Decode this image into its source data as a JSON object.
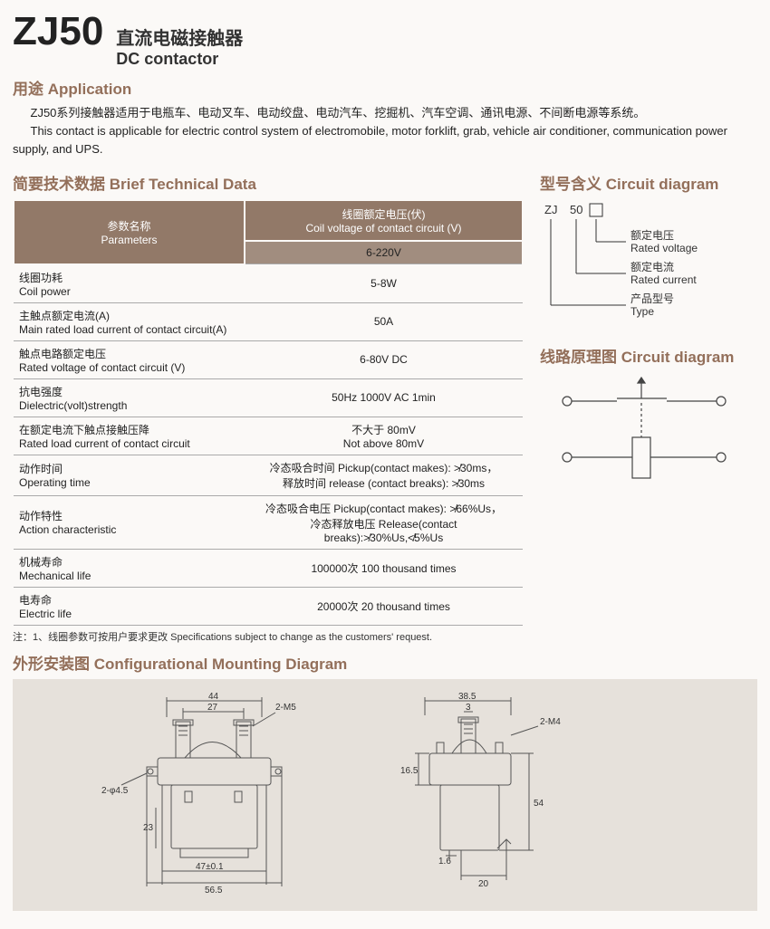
{
  "header": {
    "model": "ZJ50",
    "title_cn": "直流电磁接触器",
    "title_en": "DC contactor"
  },
  "application": {
    "heading": "用途 Application",
    "text_cn": "ZJ50系列接触器适用于电瓶车、电动叉车、电动绞盘、电动汽车、挖掘机、汽车空调、通讯电源、不间断电源等系统。",
    "text_en": "This contact is applicable for electric control system of electromobile, motor forklift, grab, vehicle air conditioner, communication power supply, and UPS."
  },
  "tech": {
    "heading": "简要技术数据  Brief Technical Data",
    "col1_cn": "参数名称",
    "col1_en": "Parameters",
    "col2_cn": "线圈额定电压(伏)",
    "col2_en": "Coil voltage of contact circuit (V)",
    "col2_range": "6-220V",
    "rows": [
      {
        "cn": "线圈功耗",
        "en": "Coil power",
        "val": "5-8W"
      },
      {
        "cn": "主触点额定电流(A)",
        "en": "Main rated load current of contact circuit(A)",
        "val": "50A"
      },
      {
        "cn": "触点电路额定电压",
        "en": "Rated voltage of contact circuit (V)",
        "val": "6-80V DC"
      },
      {
        "cn": "抗电强度",
        "en": "Dielectric(volt)strength",
        "val": "50Hz 1000V AC 1min"
      },
      {
        "cn": "在额定电流下触点接触压降",
        "en": "Rated load current of contact circuit",
        "val": "不大于 80mV\nNot above 80mV"
      },
      {
        "cn": "动作时间",
        "en": "Operating time",
        "val": "冷态吸合时间 Pickup(contact makes): ≯30ms，\n释放时间 release (contact breaks): ≯30ms"
      },
      {
        "cn": "动作特性",
        "en": "Action characteristic",
        "val": "冷态吸合电压 Pickup(contact makes): ≯66%Us，\n冷态释放电压 Release(contact breaks):≯30%Us,≮5%Us"
      },
      {
        "cn": "机械寿命",
        "en": "Mechanical life",
        "val": "100000次 100 thousand times"
      },
      {
        "cn": "电寿命",
        "en": "Electric life",
        "val": "20000次 20 thousand times"
      }
    ],
    "note": "注：1、线圈参数可按用户要求更改  Specifications subject to change as the customers' request."
  },
  "model_meaning": {
    "heading": "型号含义 Circuit diagram",
    "parts": [
      "ZJ",
      "50",
      ""
    ],
    "labels": [
      {
        "cn": "额定电压",
        "en": "Rated voltage"
      },
      {
        "cn": "额定电流",
        "en": "Rated current"
      },
      {
        "cn": "产品型号",
        "en": "Type"
      }
    ]
  },
  "circuit": {
    "heading": "线路原理图 Circuit diagram"
  },
  "mounting": {
    "heading": "外形安装图 Configurational Mounting Diagram",
    "front": {
      "dims": {
        "d44": "44",
        "d27": "27",
        "m5": "2-M5",
        "hole": "2-φ4.5",
        "d47": "47±0.1",
        "d56": "56.5",
        "d23": "23"
      }
    },
    "side": {
      "dims": {
        "d38": "38.5",
        "d3": "3",
        "m4": "2-M4",
        "d54": "54",
        "d16": "16.5",
        "d1_6": "1.6",
        "d20": "20"
      }
    },
    "colors": {
      "line": "#444",
      "fill": "#e6e1db",
      "text": "#333"
    }
  },
  "style": {
    "accent": "#936f5a",
    "table_header_bg": "#927968",
    "table_header2_bg": "#a18d7f",
    "page_bg": "#fbf9f7",
    "mount_bg": "#e6e1db"
  }
}
